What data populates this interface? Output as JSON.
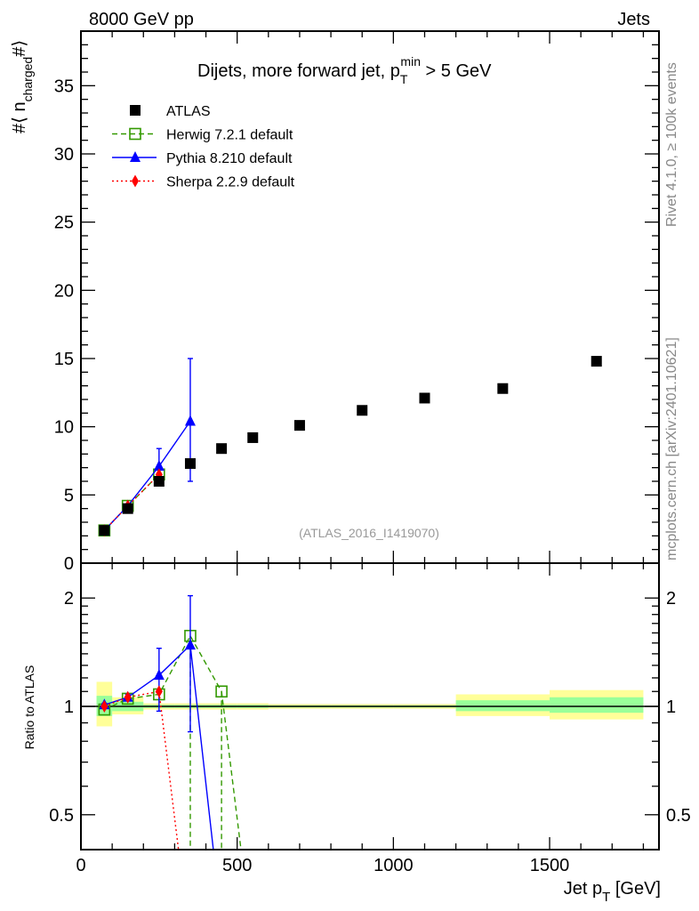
{
  "header": {
    "left": "8000 GeV pp",
    "right": "Jets"
  },
  "side_text": {
    "rivet": "Rivet 4.1.0, ≥ 100k events",
    "mcplots": "mcplots.cern.ch [arXiv:2401.10621]"
  },
  "analysis_id": "(ATLAS_2016_I1419070)",
  "chart_data": [
    {
      "type": "scatter",
      "title": {
        "main": "Dijets, more forward jet, p",
        "sub": "T",
        "sup": "min",
        "tail": " > 5 GeV"
      },
      "ylabel": {
        "pre": "#⟨ n",
        "sub": "charged",
        "post": "#⟩"
      },
      "xlim": [
        0,
        1850
      ],
      "ylim": [
        0,
        39
      ],
      "yticks": [
        0,
        5,
        10,
        15,
        20,
        25,
        30,
        35
      ],
      "legend": {
        "position": "top-left",
        "entries": [
          "ATLAS",
          "Herwig 7.2.1 default",
          "Pythia 8.210 default",
          "Sherpa 2.2.9 default"
        ]
      },
      "x": [
        75,
        150,
        250,
        350,
        450,
        550,
        700,
        900,
        1100,
        1350,
        1650
      ],
      "series": [
        {
          "name": "ATLAS",
          "color": "#000000",
          "x": [
            75,
            150,
            250,
            350,
            450,
            550,
            700,
            900,
            1100,
            1350,
            1650
          ],
          "values": [
            2.4,
            4.0,
            6.0,
            7.3,
            8.4,
            9.2,
            10.1,
            11.2,
            12.1,
            12.8,
            14.8
          ]
        },
        {
          "name": "Herwig 7.2.1 default",
          "color": "#339900",
          "x": [
            75,
            150,
            250
          ],
          "values": [
            2.4,
            4.2,
            6.5
          ]
        },
        {
          "name": "Pythia 8.210 default",
          "color": "#0000ff",
          "x": [
            75,
            150,
            250,
            350
          ],
          "values": [
            2.4,
            4.2,
            7.1,
            10.4
          ],
          "err_low": [
            2.4,
            4.1,
            6.0,
            6.0
          ],
          "err_high": [
            2.5,
            4.3,
            8.4,
            15.0
          ]
        },
        {
          "name": "Sherpa 2.2.9 default",
          "color": "#ff0000",
          "x": [
            75,
            150,
            250
          ],
          "values": [
            2.4,
            4.2,
            6.5
          ]
        }
      ]
    },
    {
      "type": "line",
      "ylabel": "Ratio to ATLAS",
      "xlabel": {
        "main": "Jet p",
        "sub": "T",
        "tail": " [GeV]"
      },
      "xlim": [
        0,
        1850
      ],
      "ylim": [
        0.4,
        2.5
      ],
      "yscale": "log",
      "xticks": [
        0,
        500,
        1000,
        1500
      ],
      "yticks": [
        0.5,
        1,
        2
      ],
      "bands": {
        "edges": [
          [
            50,
            100
          ],
          [
            100,
            200
          ],
          [
            200,
            300
          ],
          [
            300,
            400
          ],
          [
            400,
            500
          ],
          [
            500,
            600
          ],
          [
            600,
            800
          ],
          [
            800,
            1000
          ],
          [
            1000,
            1200
          ],
          [
            1200,
            1500
          ],
          [
            1500,
            1800
          ]
        ],
        "yellow": [
          [
            0.88,
            1.17
          ],
          [
            0.95,
            1.06
          ],
          [
            0.98,
            1.02
          ],
          [
            0.98,
            1.02
          ],
          [
            0.98,
            1.02
          ],
          [
            0.98,
            1.02
          ],
          [
            0.985,
            1.015
          ],
          [
            0.985,
            1.015
          ],
          [
            0.985,
            1.015
          ],
          [
            0.94,
            1.08
          ],
          [
            0.92,
            1.11
          ]
        ],
        "green": [
          [
            0.94,
            1.07
          ],
          [
            0.97,
            1.03
          ],
          [
            0.99,
            1.01
          ],
          [
            0.99,
            1.01
          ],
          [
            0.99,
            1.01
          ],
          [
            0.99,
            1.01
          ],
          [
            0.993,
            1.007
          ],
          [
            0.993,
            1.007
          ],
          [
            0.993,
            1.007
          ],
          [
            0.97,
            1.04
          ],
          [
            0.96,
            1.06
          ]
        ]
      },
      "series": [
        {
          "name": "Herwig 7.2.1 default",
          "color": "#339900",
          "x": [
            75,
            150,
            250,
            350,
            450,
            530
          ],
          "values": [
            0.98,
            1.05,
            1.08,
            1.57,
            1.1,
            0.3
          ]
        },
        {
          "name": "Pythia 8.210 default",
          "color": "#0000ff",
          "x": [
            75,
            150,
            250,
            350,
            440
          ],
          "values": [
            1.01,
            1.06,
            1.22,
            1.48,
            0.3
          ],
          "err_low": [
            1.0,
            1.04,
            0.97,
            0.85,
            null
          ],
          "err_high": [
            1.02,
            1.08,
            1.45,
            2.03,
            null
          ]
        },
        {
          "name": "Sherpa 2.2.9 default",
          "color": "#ff0000",
          "x": [
            75,
            150,
            250,
            330
          ],
          "values": [
            1.0,
            1.06,
            1.1,
            0.3
          ]
        }
      ]
    }
  ]
}
